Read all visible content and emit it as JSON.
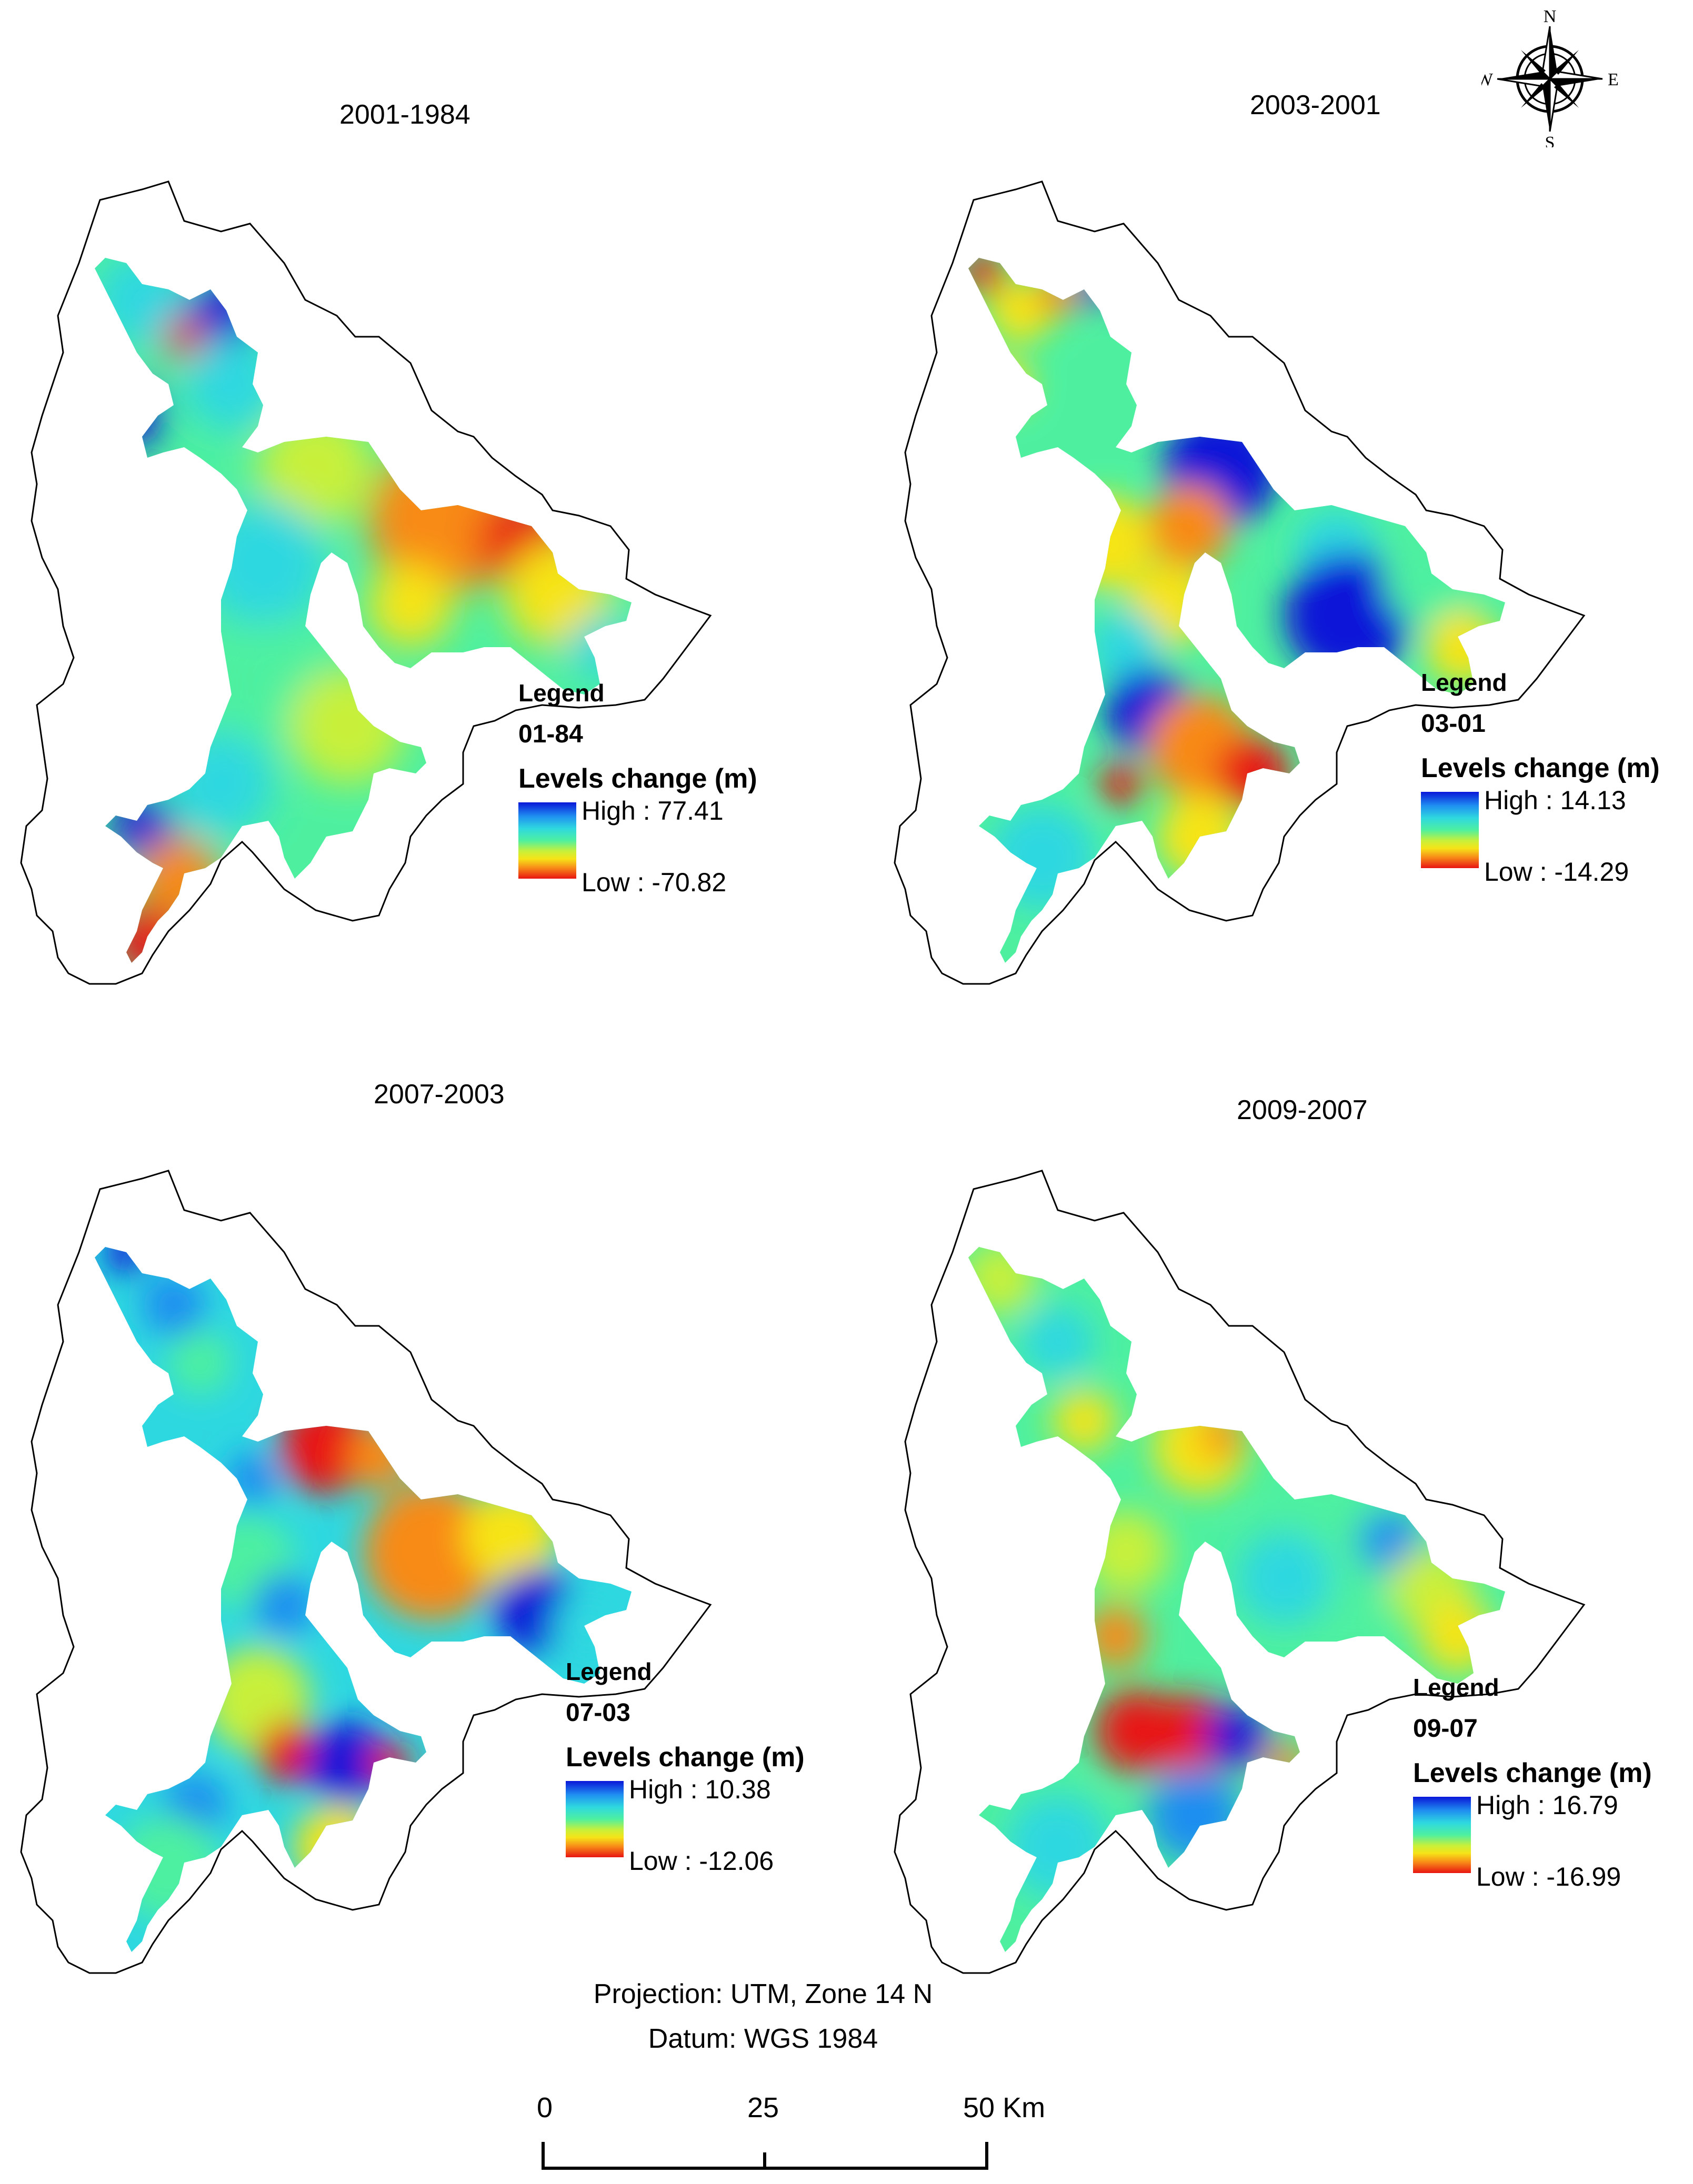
{
  "panels": [
    {
      "title": "2001-1984",
      "legend": {
        "heading": "Legend",
        "code": "01-84",
        "label": "Levels change (m)",
        "high": "High : 77.41",
        "low": "Low : -70.82"
      }
    },
    {
      "title": "2003-2001",
      "legend": {
        "heading": "Legend",
        "code": "03-01",
        "label": "Levels change (m)",
        "high": "High : 14.13",
        "low": "Low : -14.29"
      }
    },
    {
      "title": "2007-2003",
      "legend": {
        "heading": "Legend",
        "code": "07-03",
        "label": "Levels change (m)",
        "high": "High : 10.38",
        "low": "Low : -12.06"
      }
    },
    {
      "title": "2009-2007",
      "legend": {
        "heading": "Legend",
        "code": "09-07",
        "label": "Levels change (m)",
        "high": "High : 16.79",
        "low": "Low : -16.99"
      }
    }
  ],
  "compass": {
    "n": "N",
    "s": "S",
    "e": "E",
    "w": "W"
  },
  "footer": {
    "projection": "Projection: UTM, Zone 14 N",
    "datum": "Datum: WGS 1984"
  },
  "scale": {
    "zero": "0",
    "mid": "25",
    "end": "50 Km"
  },
  "colors": {
    "high": "#0a16d8",
    "cyan": "#2ed8e0",
    "green": "#4ef0a0",
    "yellow": "#f6e418",
    "orange": "#f88a18",
    "low": "#e81412"
  }
}
